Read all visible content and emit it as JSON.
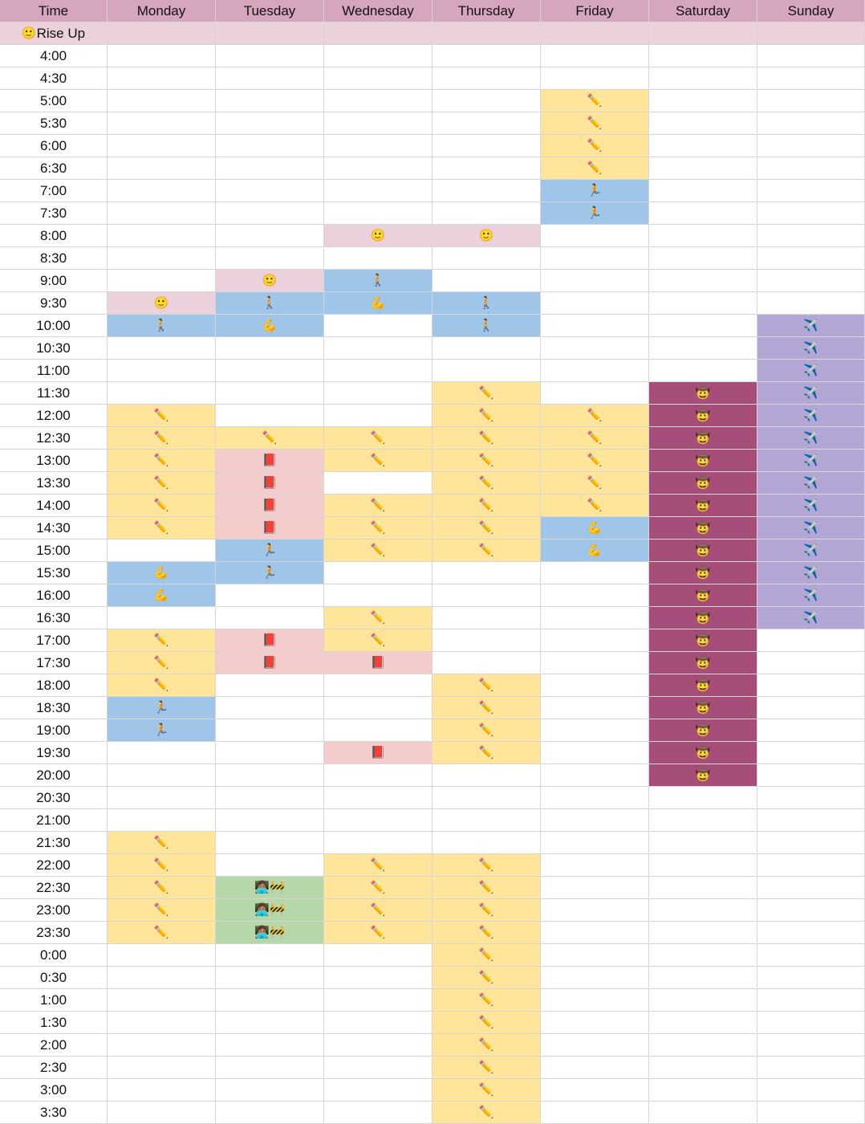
{
  "header": {
    "time_label": "Time",
    "days": [
      "Monday",
      "Tuesday",
      "Wednesday",
      "Thursday",
      "Friday",
      "Saturday",
      "Sunday"
    ]
  },
  "rise_row": {
    "icon": "🙂",
    "label": "Rise Up"
  },
  "times": [
    "4:00",
    "4:30",
    "5:00",
    "5:30",
    "6:00",
    "6:30",
    "7:00",
    "7:30",
    "8:00",
    "8:30",
    "9:00",
    "9:30",
    "10:00",
    "10:30",
    "11:00",
    "11:30",
    "12:00",
    "12:30",
    "13:00",
    "13:30",
    "14:00",
    "14:30",
    "15:00",
    "15:30",
    "16:00",
    "16:30",
    "17:00",
    "17:30",
    "18:00",
    "18:30",
    "19:00",
    "19:30",
    "20:00",
    "20:30",
    "21:00",
    "21:30",
    "22:00",
    "22:30",
    "23:00",
    "23:30",
    "0:00",
    "0:30",
    "1:00",
    "1:30",
    "2:00",
    "2:30",
    "3:00",
    "3:30"
  ],
  "categories": {
    "rise": {
      "icon": "🙂",
      "icon_name": "smiling-face-icon",
      "color": "#ead1dc"
    },
    "walk": {
      "icon": "🚶",
      "icon_name": "walking-person-icon",
      "color": "#9fc5e8"
    },
    "run": {
      "icon": "🏃",
      "icon_name": "running-person-icon",
      "color": "#9fc5e8"
    },
    "muscle": {
      "icon": "💪",
      "icon_name": "flexed-biceps-icon",
      "color": "#9fc5e8"
    },
    "pencil": {
      "icon": "✏️",
      "icon_name": "pencil-icon",
      "color": "#ffe599"
    },
    "book": {
      "icon": "📕",
      "icon_name": "red-book-icon",
      "color": "#f4cccc"
    },
    "cowboy": {
      "icon": "🤠",
      "icon_name": "cowboy-face-icon",
      "color": "#a64d79"
    },
    "plane": {
      "icon": "✈️",
      "icon_name": "airplane-icon",
      "color": "#b4a7d6"
    },
    "work": {
      "icon": "👩🏽‍💻🚧",
      "icon_name": "technologist-construction-icon",
      "color": "#b6d7a8"
    }
  },
  "schedule": {
    "Monday": {
      "9:30": "rise",
      "10:00": "walk",
      "12:00": "pencil",
      "12:30": "pencil",
      "13:00": "pencil",
      "13:30": "pencil",
      "14:00": "pencil",
      "14:30": "pencil",
      "15:30": "muscle",
      "16:00": "muscle",
      "17:00": "pencil",
      "17:30": "pencil",
      "18:00": "pencil",
      "18:30": "run",
      "19:00": "run",
      "21:30": "pencil",
      "22:00": "pencil",
      "22:30": "pencil",
      "23:00": "pencil",
      "23:30": "pencil"
    },
    "Tuesday": {
      "9:00": "rise",
      "9:30": "walk",
      "10:00": "muscle",
      "12:30": "pencil",
      "13:00": "book",
      "13:30": "book",
      "14:00": "book",
      "14:30": "book",
      "15:00": "run",
      "15:30": "run",
      "17:00": "book",
      "17:30": "book",
      "22:30": "work",
      "23:00": "work",
      "23:30": "work"
    },
    "Wednesday": {
      "8:00": "rise",
      "9:00": "walk",
      "9:30": "muscle",
      "12:30": "pencil",
      "13:00": "pencil",
      "14:00": "pencil",
      "14:30": "pencil",
      "15:00": "pencil",
      "16:30": "pencil",
      "17:00": "pencil",
      "17:30": "book",
      "19:30": "book",
      "22:00": "pencil",
      "22:30": "pencil",
      "23:00": "pencil",
      "23:30": "pencil"
    },
    "Thursday": {
      "8:00": "rise",
      "9:30": "walk",
      "10:00": "walk",
      "11:30": "pencil",
      "12:00": "pencil",
      "12:30": "pencil",
      "13:00": "pencil",
      "13:30": "pencil",
      "14:00": "pencil",
      "14:30": "pencil",
      "15:00": "pencil",
      "18:00": "pencil",
      "18:30": "pencil",
      "19:00": "pencil",
      "19:30": "pencil",
      "22:00": "pencil",
      "22:30": "pencil",
      "23:00": "pencil",
      "23:30": "pencil",
      "0:00": "pencil",
      "0:30": "pencil",
      "1:00": "pencil",
      "1:30": "pencil",
      "2:00": "pencil",
      "2:30": "pencil",
      "3:00": "pencil",
      "3:30": "pencil"
    },
    "Friday": {
      "5:00": "pencil",
      "5:30": "pencil",
      "6:00": "pencil",
      "6:30": "pencil",
      "7:00": "run",
      "7:30": "run",
      "12:00": "pencil",
      "12:30": "pencil",
      "13:00": "pencil",
      "13:30": "pencil",
      "14:00": "pencil",
      "14:30": "muscle",
      "15:00": "muscle"
    },
    "Saturday": {
      "11:30": "cowboy",
      "12:00": "cowboy",
      "12:30": "cowboy",
      "13:00": "cowboy",
      "13:30": "cowboy",
      "14:00": "cowboy",
      "14:30": "cowboy",
      "15:00": "cowboy",
      "15:30": "cowboy",
      "16:00": "cowboy",
      "16:30": "cowboy",
      "17:00": "cowboy",
      "17:30": "cowboy",
      "18:00": "cowboy",
      "18:30": "cowboy",
      "19:00": "cowboy",
      "19:30": "cowboy",
      "20:00": "cowboy"
    },
    "Sunday": {
      "10:00": "plane",
      "10:30": "plane",
      "11:00": "plane",
      "11:30": "plane",
      "12:00": "plane",
      "12:30": "plane",
      "13:00": "plane",
      "13:30": "plane",
      "14:00": "plane",
      "14:30": "plane",
      "15:00": "plane",
      "15:30": "plane",
      "16:00": "plane",
      "16:30": "plane"
    }
  },
  "colors": {
    "header": "#d5a6bd",
    "rise_row": "#ead1dc",
    "gridline": "#d6d6d6"
  }
}
